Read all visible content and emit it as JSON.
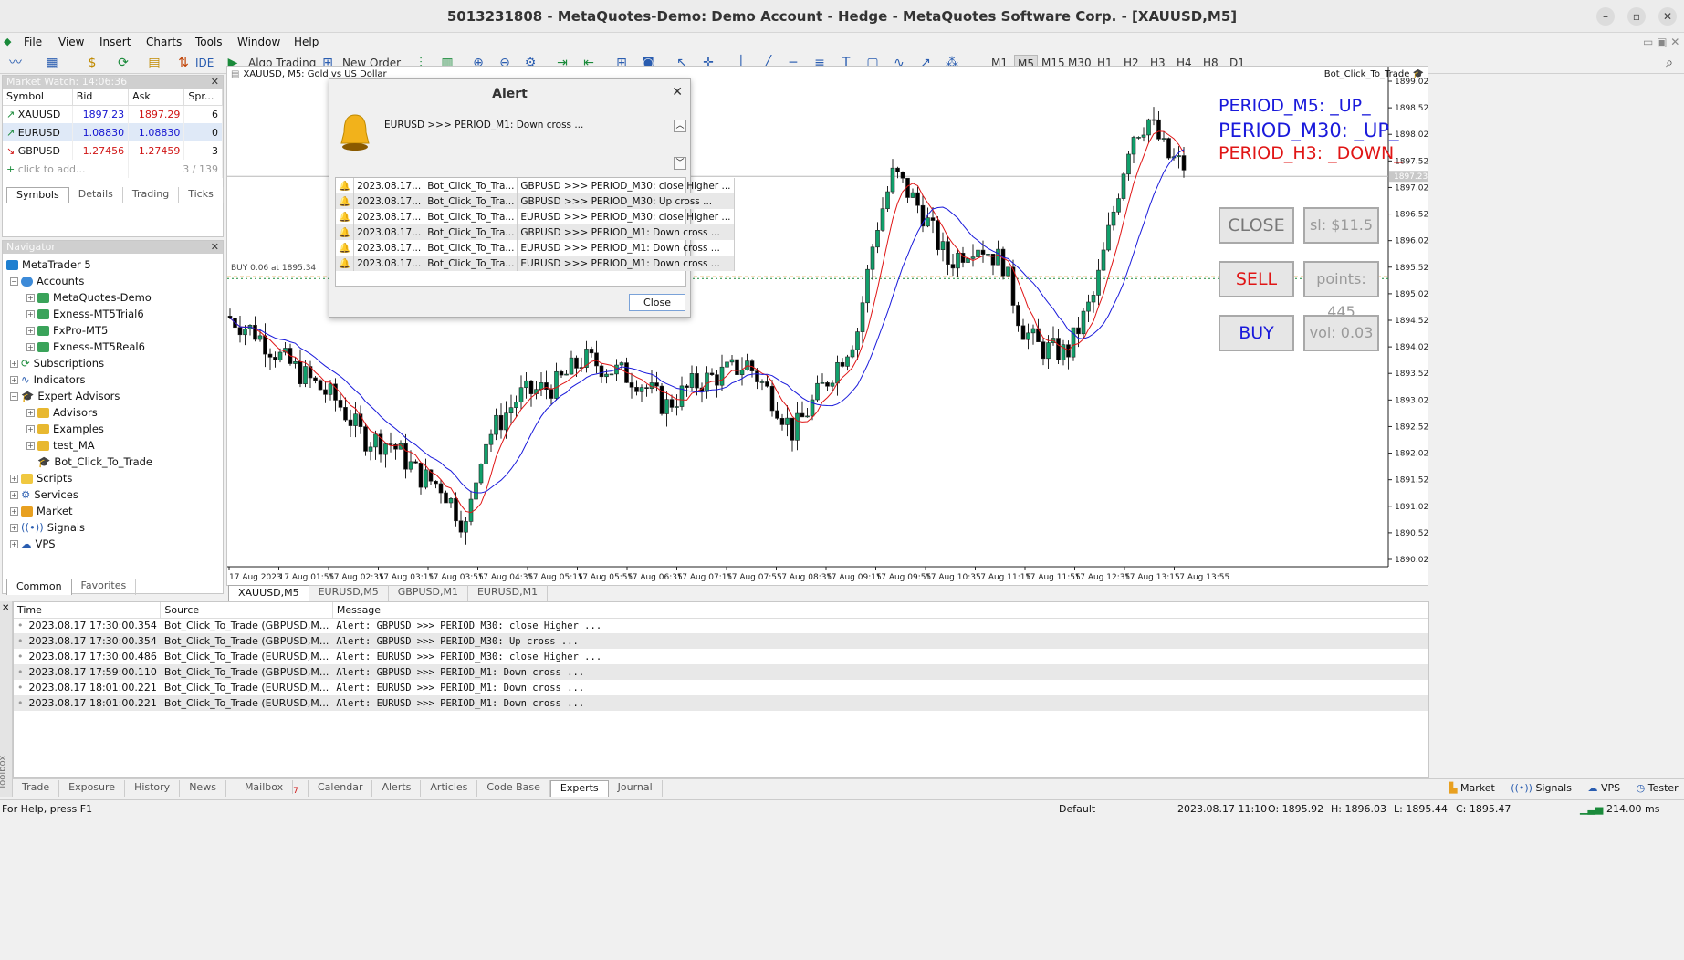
{
  "window": {
    "title": "5013231808 - MetaQuotes-Demo: Demo Account - Hedge - MetaQuotes Software Corp. - [XAUUSD,M5]"
  },
  "menu": [
    "File",
    "View",
    "Insert",
    "Charts",
    "Tools",
    "Window",
    "Help"
  ],
  "toolbar": {
    "ide_label": "IDE",
    "algo_trading_label": "Algo Trading",
    "new_order_label": "New Order",
    "timeframes": [
      "M1",
      "M5",
      "M15",
      "M30",
      "H1",
      "H2",
      "H3",
      "H4",
      "H8",
      "D1"
    ],
    "active_timeframe": "M5"
  },
  "market_watch": {
    "header": "Market Watch: 14:06:36",
    "columns": [
      "Symbol",
      "Bid",
      "Ask",
      "Spr..."
    ],
    "rows": [
      {
        "symbol": "XAUUSD",
        "bid": "1897.23",
        "ask": "1897.29",
        "spread": "6",
        "dir": "up"
      },
      {
        "symbol": "EURUSD",
        "bid": "1.08830",
        "ask": "1.08830",
        "spread": "0",
        "dir": "up"
      },
      {
        "symbol": "GBPUSD",
        "bid": "1.27456",
        "ask": "1.27459",
        "spread": "3",
        "dir": "down"
      }
    ],
    "add_placeholder": "click to add...",
    "count": "3 / 139",
    "tabs": [
      "Symbols",
      "Details",
      "Trading",
      "Ticks"
    ]
  },
  "navigator": {
    "header": "Navigator",
    "items": [
      {
        "label": "MetaTrader 5",
        "level": 0
      },
      {
        "label": "Accounts",
        "level": 1
      },
      {
        "label": "MetaQuotes-Demo",
        "level": 2
      },
      {
        "label": "Exness-MT5Trial6",
        "level": 2
      },
      {
        "label": "FxPro-MT5",
        "level": 2
      },
      {
        "label": "Exness-MT5Real6",
        "level": 2
      },
      {
        "label": "Subscriptions",
        "level": 1
      },
      {
        "label": "Indicators",
        "level": 1
      },
      {
        "label": "Expert Advisors",
        "level": 1
      },
      {
        "label": "Advisors",
        "level": 2
      },
      {
        "label": "Examples",
        "level": 2
      },
      {
        "label": "test_MA",
        "level": 2
      },
      {
        "label": "Bot_Click_To_Trade",
        "level": 2
      },
      {
        "label": "Scripts",
        "level": 1
      },
      {
        "label": "Services",
        "level": 1
      },
      {
        "label": "Market",
        "level": 1
      },
      {
        "label": "Signals",
        "level": 1
      },
      {
        "label": "VPS",
        "level": 1
      }
    ],
    "tabs": [
      "Common",
      "Favorites"
    ]
  },
  "chart": {
    "header": "XAUUSD, M5:  Gold vs US Dollar",
    "expert_label": "Bot_Click_To_Trade",
    "buy_line_label": "BUY 0.06 at 1895.34",
    "current_price_label": "1897.23",
    "price_axis": [
      "1899.02",
      "1898.52",
      "1898.02",
      "1897.52",
      "1897.02",
      "1896.52",
      "1896.02",
      "1895.52",
      "1895.02",
      "1894.52",
      "1894.02",
      "1893.52",
      "1893.02",
      "1892.52",
      "1892.02",
      "1891.52",
      "1891.02",
      "1890.52",
      "1890.02"
    ],
    "time_axis": [
      "17 Aug 2023",
      "17 Aug 01:55",
      "17 Aug 02:35",
      "17 Aug 03:15",
      "17 Aug 03:55",
      "17 Aug 04:35",
      "17 Aug 05:15",
      "17 Aug 05:55",
      "17 Aug 06:35",
      "17 Aug 07:15",
      "17 Aug 07:55",
      "17 Aug 08:35",
      "17 Aug 09:15",
      "17 Aug 09:55",
      "17 Aug 10:35",
      "17 Aug 11:15",
      "17 Aug 11:55",
      "17 Aug 12:35",
      "17 Aug 13:15",
      "17 Aug 13:55"
    ],
    "periods": [
      {
        "text": "PERIOD_M5: _UP_",
        "color": "#1a1adb"
      },
      {
        "text": "PERIOD_M30: _UP_",
        "color": "#1a1adb"
      },
      {
        "text": "PERIOD_H3: _DOWN_",
        "color": "#e01515"
      }
    ],
    "buttons": {
      "close": "CLOSE",
      "sl": "sl: $11.5",
      "sell": "SELL",
      "points": "points: 445",
      "buy": "BUY",
      "vol": "vol: 0.03"
    },
    "tabs": [
      "XAUUSD,M5",
      "EURUSD,M5",
      "GBPUSD,M1",
      "EURUSD,M1"
    ],
    "colors": {
      "up": "#10a06b",
      "down": "#000000",
      "ma_fast": "#e01515",
      "ma_slow": "#1a1adb"
    }
  },
  "alert": {
    "title": "Alert",
    "message": "EURUSD >>> PERIOD_M1: Down cross ...",
    "rows": [
      {
        "date": "2023.08.17...",
        "source": "Bot_Click_To_Tra...",
        "msg": "GBPUSD >>> PERIOD_M30: close Higher ..."
      },
      {
        "date": "2023.08.17...",
        "source": "Bot_Click_To_Tra...",
        "msg": "GBPUSD >>> PERIOD_M30: Up cross ..."
      },
      {
        "date": "2023.08.17...",
        "source": "Bot_Click_To_Tra...",
        "msg": "EURUSD >>> PERIOD_M30: close Higher ..."
      },
      {
        "date": "2023.08.17...",
        "source": "Bot_Click_To_Tra...",
        "msg": "GBPUSD >>> PERIOD_M1: Down cross ..."
      },
      {
        "date": "2023.08.17...",
        "source": "Bot_Click_To_Tra...",
        "msg": "EURUSD >>> PERIOD_M1: Down cross ..."
      },
      {
        "date": "2023.08.17...",
        "source": "Bot_Click_To_Tra...",
        "msg": "EURUSD >>> PERIOD_M1: Down cross ..."
      }
    ],
    "close_label": "Close"
  },
  "toolbox": {
    "columns": [
      "Time",
      "Source",
      "Message"
    ],
    "rows": [
      {
        "time": "2023.08.17 17:30:00.354",
        "source": "Bot_Click_To_Trade (GBPUSD,M...",
        "msg": "Alert: GBPUSD >>> PERIOD_M30: close Higher ..."
      },
      {
        "time": "2023.08.17 17:30:00.354",
        "source": "Bot_Click_To_Trade (GBPUSD,M...",
        "msg": "Alert: GBPUSD >>> PERIOD_M30: Up cross ..."
      },
      {
        "time": "2023.08.17 17:30:00.486",
        "source": "Bot_Click_To_Trade (EURUSD,M...",
        "msg": "Alert: EURUSD >>> PERIOD_M30: close Higher ..."
      },
      {
        "time": "2023.08.17 17:59:00.110",
        "source": "Bot_Click_To_Trade (GBPUSD,M...",
        "msg": "Alert: GBPUSD >>> PERIOD_M1: Down cross ..."
      },
      {
        "time": "2023.08.17 18:01:00.221",
        "source": "Bot_Click_To_Trade (EURUSD,M...",
        "msg": "Alert: EURUSD >>> PERIOD_M1: Down cross ..."
      },
      {
        "time": "2023.08.17 18:01:00.221",
        "source": "Bot_Click_To_Trade (EURUSD,M...",
        "msg": "Alert: EURUSD >>> PERIOD_M1: Down cross ..."
      }
    ],
    "tabs": [
      "Trade",
      "Exposure",
      "History",
      "News",
      "Mailbox",
      "Calendar",
      "Alerts",
      "Articles",
      "Code Base",
      "Experts",
      "Journal"
    ],
    "active_tab": "Experts",
    "mailbox_badge": "7",
    "side_label": "Toolbox",
    "right_items": [
      "Market",
      "Signals",
      "VPS",
      "Tester"
    ]
  },
  "status": {
    "help": "For Help, press F1",
    "profile": "Default",
    "datetime": "2023.08.17 11:10",
    "open": "O: 1895.92",
    "high": "H: 1896.03",
    "low": "L: 1895.44",
    "close": "C: 1895.47",
    "ping": "214.00 ms"
  }
}
